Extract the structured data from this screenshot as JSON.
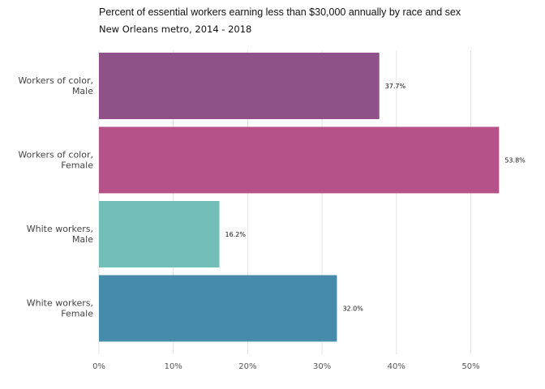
{
  "chart_data": {
    "type": "bar",
    "orientation": "horizontal",
    "title": "Percent of essential workers earning less than $30,000 annually by race and sex",
    "subtitle": "New Orleans metro, 2014 - 2018",
    "categories": [
      [
        "Workers of color,",
        "Male"
      ],
      [
        "Workers of color,",
        "Female"
      ],
      [
        "White workers,",
        "Male"
      ],
      [
        "White workers,",
        "Female"
      ]
    ],
    "values": [
      37.7,
      53.8,
      16.2,
      32.0
    ],
    "data_labels": [
      "37.7%",
      "53.8%",
      "16.2%",
      "32.0%"
    ],
    "colors": [
      "#8e5289",
      "#b5528a",
      "#73bfb8",
      "#468caa"
    ],
    "xticks": [
      "0%",
      "10%",
      "20%",
      "30%",
      "40%",
      "50%"
    ],
    "xtick_values": [
      0,
      10,
      20,
      30,
      40,
      50
    ],
    "xlim": [
      0,
      60
    ],
    "grid": "vertical major",
    "legend": "none"
  }
}
